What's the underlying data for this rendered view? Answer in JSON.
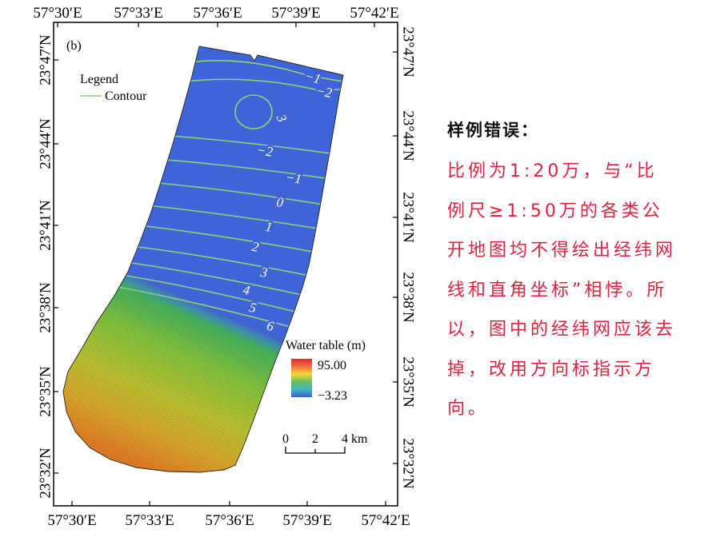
{
  "map": {
    "panel_label": "(b)",
    "graticule": {
      "top": [
        "57°30′E",
        "57°33′E",
        "57°36′E",
        "57°39′E",
        "57°42′E"
      ],
      "bottom": [
        "57°30′E",
        "57°33′E",
        "57°36′E",
        "57°39′E",
        "57°42′E"
      ],
      "left": [
        "23°47′N",
        "23°44′N",
        "23°41′N",
        "23°38′N",
        "23°35′N",
        "23°32′N"
      ],
      "right": [
        "23°47′N",
        "23°44′N",
        "23°41′N",
        "23°38′N",
        "23°35′N",
        "23°32′N"
      ]
    },
    "legend": {
      "title": "Legend",
      "contour": "Contour"
    },
    "contour_labels": {
      "top": [
        "−1",
        "−2"
      ],
      "closed": "3",
      "main": [
        "−2",
        "−1",
        "0",
        "1",
        "2",
        "3",
        "4",
        "5",
        "6"
      ]
    },
    "water_table": {
      "title": "Water table (m)",
      "max": "95.00",
      "min": "−3.23"
    },
    "scale_bar": {
      "start": "0",
      "mid": "2",
      "end": "4",
      "unit": "km"
    },
    "colors": {
      "area_low": "#3f64d8",
      "area_high": "#df7626",
      "contour": "#8fd07a"
    }
  },
  "note": {
    "heading": "样例错误：",
    "lines": [
      "比例为1:20万，与“比",
      "例尺≥1:50万的各类公",
      "开地图均不得绘出经纬网",
      "线和直角坐标”相悖。所",
      "以，图中的经纬网应该去",
      "掉，改用方向标指示方",
      "向。"
    ],
    "color": "#e3213f"
  }
}
